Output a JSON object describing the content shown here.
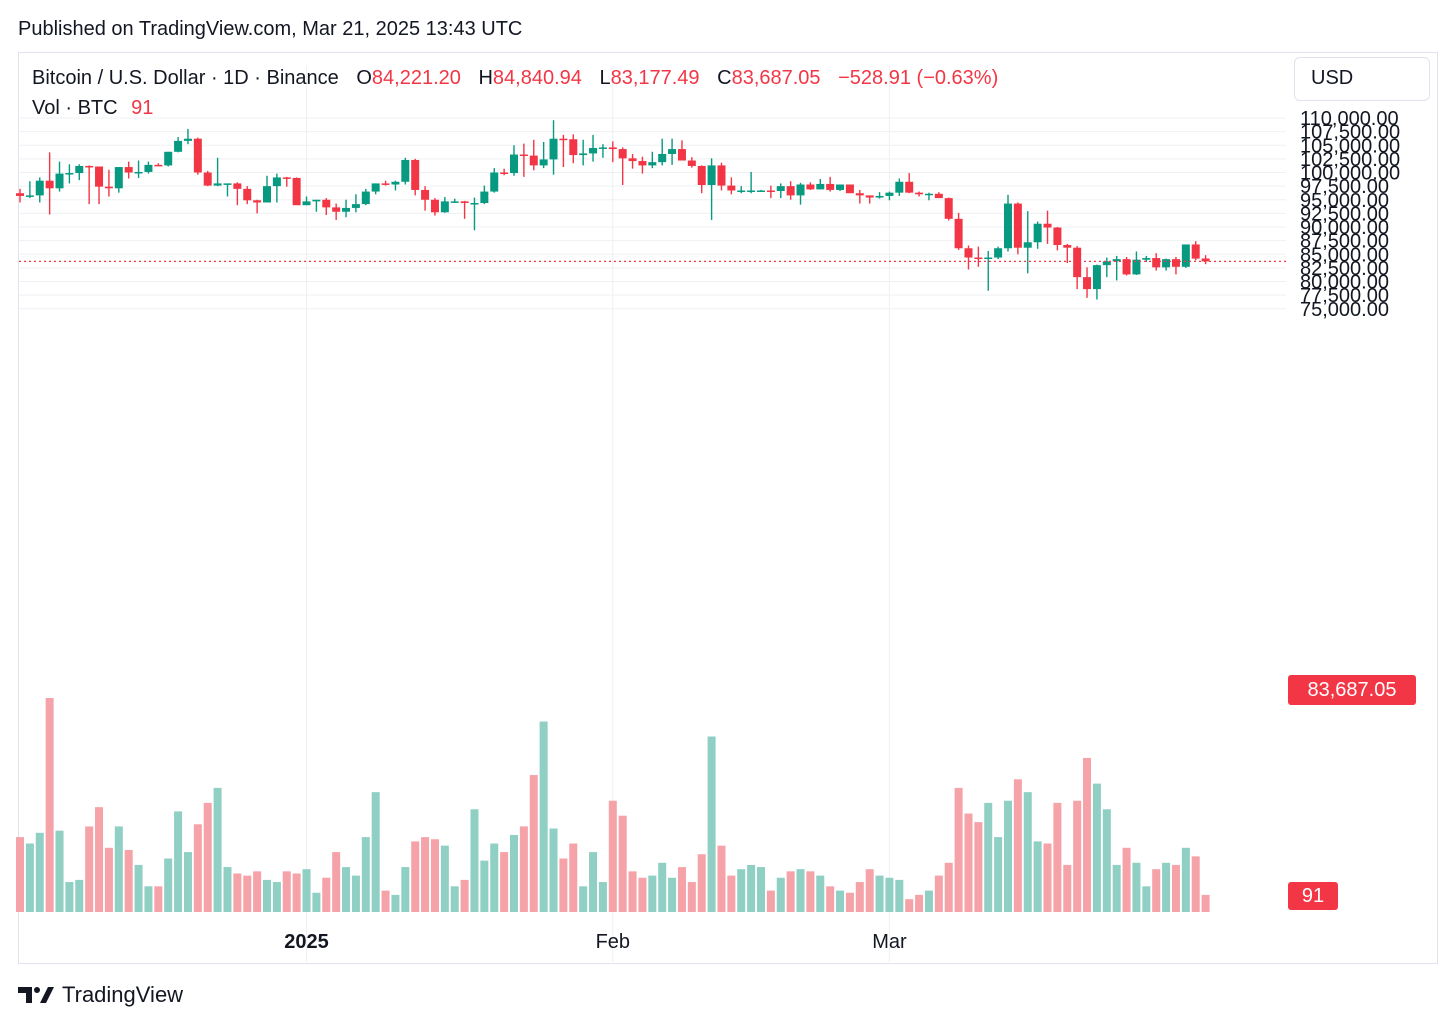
{
  "header": {
    "published": "Published on TradingView.com, Mar 21, 2025 13:43 UTC"
  },
  "legend": {
    "symbol": "Bitcoin / U.S. Dollar · 1D · Binance",
    "o_label": "O",
    "o_value": "84,221.20",
    "h_label": "H",
    "h_value": "84,840.94",
    "l_label": "L",
    "l_value": "83,177.49",
    "c_label": "C",
    "c_value": "83,687.05",
    "change": "−528.91 (−0.63%)",
    "vol_label": "Vol · BTC",
    "vol_value": "91"
  },
  "currency": "USD",
  "last_price_label": "83,687.05",
  "last_volume_label": "91",
  "footer": {
    "brand": "TradingView"
  },
  "colors": {
    "up": "#089981",
    "down": "#f23645",
    "up_volume": "#8fcfc4",
    "down_volume": "#f5a3a8",
    "grid": "#eef0f3",
    "last_line": "#f23645"
  },
  "chart_data": {
    "type": "candlestick",
    "ylim": [
      73000,
      111000
    ],
    "y_ticks": [
      {
        "value": 75000,
        "label": "75,000.00"
      },
      {
        "value": 77500,
        "label": "77,500.00"
      },
      {
        "value": 80000,
        "label": "80,000.00"
      },
      {
        "value": 82500,
        "label": "82,500.00"
      },
      {
        "value": 85000,
        "label": "85,000.00"
      },
      {
        "value": 87500,
        "label": "87,500.00"
      },
      {
        "value": 90000,
        "label": "90,000.00"
      },
      {
        "value": 92500,
        "label": "92,500.00"
      },
      {
        "value": 95000,
        "label": "95,000.00"
      },
      {
        "value": 97500,
        "label": "97,500.00"
      },
      {
        "value": 100000,
        "label": "100,000.00"
      },
      {
        "value": 102500,
        "label": "102,500.00"
      },
      {
        "value": 105000,
        "label": "105,000.00"
      },
      {
        "value": 107500,
        "label": "107,500.00"
      },
      {
        "value": 110000,
        "label": "110,000.00"
      }
    ],
    "x_ticks": [
      {
        "index": 29,
        "label": "2025",
        "bold": true
      },
      {
        "index": 60,
        "label": "Feb",
        "bold": false
      },
      {
        "index": 88,
        "label": "Mar",
        "bold": false
      }
    ],
    "last_price": 83687.05,
    "volume_max": 100,
    "candles": [
      {
        "o": 96200,
        "h": 97000,
        "l": 94500,
        "c": 95700,
        "v": 35
      },
      {
        "o": 95700,
        "h": 98400,
        "l": 95300,
        "c": 95800,
        "v": 32
      },
      {
        "o": 95800,
        "h": 99100,
        "l": 94500,
        "c": 98500,
        "v": 37
      },
      {
        "o": 98500,
        "h": 103700,
        "l": 92300,
        "c": 97100,
        "v": 100
      },
      {
        "o": 97100,
        "h": 102000,
        "l": 96500,
        "c": 99800,
        "v": 38
      },
      {
        "o": 99800,
        "h": 101500,
        "l": 98000,
        "c": 99900,
        "v": 14
      },
      {
        "o": 99900,
        "h": 101500,
        "l": 98600,
        "c": 101200,
        "v": 15
      },
      {
        "o": 101200,
        "h": 101300,
        "l": 94200,
        "c": 101100,
        "v": 40
      },
      {
        "o": 101100,
        "h": 101000,
        "l": 94200,
        "c": 97400,
        "v": 49
      },
      {
        "o": 97400,
        "h": 100500,
        "l": 95600,
        "c": 97100,
        "v": 30
      },
      {
        "o": 97100,
        "h": 101000,
        "l": 96300,
        "c": 101000,
        "v": 40
      },
      {
        "o": 101000,
        "h": 102000,
        "l": 98900,
        "c": 100000,
        "v": 29
      },
      {
        "o": 100000,
        "h": 102200,
        "l": 99000,
        "c": 100100,
        "v": 22
      },
      {
        "o": 100100,
        "h": 102000,
        "l": 99800,
        "c": 101400,
        "v": 12
      },
      {
        "o": 101400,
        "h": 101700,
        "l": 101300,
        "c": 101300,
        "v": 12
      },
      {
        "o": 101300,
        "h": 103800,
        "l": 101100,
        "c": 103800,
        "v": 25
      },
      {
        "o": 103800,
        "h": 106500,
        "l": 103700,
        "c": 105800,
        "v": 47
      },
      {
        "o": 105800,
        "h": 108000,
        "l": 105200,
        "c": 106200,
        "v": 28
      },
      {
        "o": 106200,
        "h": 106400,
        "l": 99600,
        "c": 100000,
        "v": 41
      },
      {
        "o": 100000,
        "h": 100300,
        "l": 97500,
        "c": 97600,
        "v": 51
      },
      {
        "o": 97600,
        "h": 102700,
        "l": 97500,
        "c": 98000,
        "v": 58
      },
      {
        "o": 98000,
        "h": 98000,
        "l": 95600,
        "c": 98000,
        "v": 21
      },
      {
        "o": 98000,
        "h": 98200,
        "l": 94000,
        "c": 97000,
        "v": 18
      },
      {
        "o": 97000,
        "h": 97500,
        "l": 94200,
        "c": 94900,
        "v": 17
      },
      {
        "o": 94900,
        "h": 95000,
        "l": 92500,
        "c": 94500,
        "v": 19
      },
      {
        "o": 94500,
        "h": 99400,
        "l": 94500,
        "c": 97500,
        "v": 15
      },
      {
        "o": 97500,
        "h": 99800,
        "l": 94500,
        "c": 99100,
        "v": 14
      },
      {
        "o": 99100,
        "h": 99200,
        "l": 97400,
        "c": 99000,
        "v": 19
      },
      {
        "o": 99000,
        "h": 99100,
        "l": 94100,
        "c": 94000,
        "v": 18
      },
      {
        "o": 94000,
        "h": 95600,
        "l": 94000,
        "c": 94700,
        "v": 20
      },
      {
        "o": 94700,
        "h": 95000,
        "l": 92800,
        "c": 95000,
        "v": 9
      },
      {
        "o": 95000,
        "h": 95300,
        "l": 92200,
        "c": 93600,
        "v": 16
      },
      {
        "o": 93600,
        "h": 94300,
        "l": 91300,
        "c": 92800,
        "v": 28
      },
      {
        "o": 92800,
        "h": 95000,
        "l": 91800,
        "c": 93500,
        "v": 21
      },
      {
        "o": 93500,
        "h": 96000,
        "l": 92700,
        "c": 94200,
        "v": 17
      },
      {
        "o": 94200,
        "h": 97000,
        "l": 94000,
        "c": 96500,
        "v": 35
      },
      {
        "o": 96500,
        "h": 98000,
        "l": 96000,
        "c": 98000,
        "v": 56
      },
      {
        "o": 98000,
        "h": 98500,
        "l": 97600,
        "c": 97800,
        "v": 10
      },
      {
        "o": 97800,
        "h": 98500,
        "l": 96700,
        "c": 98300,
        "v": 8
      },
      {
        "o": 98300,
        "h": 102700,
        "l": 97800,
        "c": 102300,
        "v": 21
      },
      {
        "o": 102300,
        "h": 102500,
        "l": 95800,
        "c": 96800,
        "v": 33
      },
      {
        "o": 96800,
        "h": 97500,
        "l": 93000,
        "c": 95000,
        "v": 35
      },
      {
        "o": 95000,
        "h": 95300,
        "l": 92100,
        "c": 92700,
        "v": 34
      },
      {
        "o": 92700,
        "h": 95500,
        "l": 92600,
        "c": 94700,
        "v": 31
      },
      {
        "o": 94700,
        "h": 95200,
        "l": 94400,
        "c": 94700,
        "v": 12
      },
      {
        "o": 94700,
        "h": 94800,
        "l": 91500,
        "c": 94400,
        "v": 15
      },
      {
        "o": 94400,
        "h": 95400,
        "l": 89400,
        "c": 94400,
        "v": 48
      },
      {
        "o": 94400,
        "h": 97600,
        "l": 94200,
        "c": 96500,
        "v": 24
      },
      {
        "o": 96500,
        "h": 100800,
        "l": 96300,
        "c": 100000,
        "v": 32
      },
      {
        "o": 100000,
        "h": 100700,
        "l": 99500,
        "c": 99900,
        "v": 28
      },
      {
        "o": 99900,
        "h": 105000,
        "l": 99400,
        "c": 103300,
        "v": 36
      },
      {
        "o": 103300,
        "h": 105300,
        "l": 99200,
        "c": 103100,
        "v": 40
      },
      {
        "o": 103100,
        "h": 106000,
        "l": 100400,
        "c": 101300,
        "v": 64
      },
      {
        "o": 101300,
        "h": 105600,
        "l": 100800,
        "c": 102400,
        "v": 89
      },
      {
        "o": 102400,
        "h": 109600,
        "l": 99600,
        "c": 106200,
        "v": 39
      },
      {
        "o": 106200,
        "h": 106900,
        "l": 101000,
        "c": 106100,
        "v": 25
      },
      {
        "o": 106100,
        "h": 107000,
        "l": 101700,
        "c": 103200,
        "v": 32
      },
      {
        "o": 103200,
        "h": 106000,
        "l": 101300,
        "c": 103500,
        "v": 12
      },
      {
        "o": 103500,
        "h": 106900,
        "l": 102000,
        "c": 104500,
        "v": 28
      },
      {
        "o": 104500,
        "h": 105200,
        "l": 102700,
        "c": 104600,
        "v": 14
      },
      {
        "o": 104600,
        "h": 105700,
        "l": 101900,
        "c": 104300,
        "v": 52
      },
      {
        "o": 104300,
        "h": 104600,
        "l": 97700,
        "c": 102600,
        "v": 45
      },
      {
        "o": 102600,
        "h": 103400,
        "l": 100700,
        "c": 102100,
        "v": 19
      },
      {
        "o": 102100,
        "h": 102900,
        "l": 99800,
        "c": 101300,
        "v": 16
      },
      {
        "o": 101300,
        "h": 103800,
        "l": 100800,
        "c": 101900,
        "v": 17
      },
      {
        "o": 101900,
        "h": 106200,
        "l": 101300,
        "c": 103400,
        "v": 23
      },
      {
        "o": 103400,
        "h": 106200,
        "l": 101400,
        "c": 104300,
        "v": 16
      },
      {
        "o": 104300,
        "h": 105900,
        "l": 102200,
        "c": 102200,
        "v": 21
      },
      {
        "o": 102200,
        "h": 102800,
        "l": 100900,
        "c": 101200,
        "v": 14
      },
      {
        "o": 101200,
        "h": 101300,
        "l": 96200,
        "c": 97700,
        "v": 27
      },
      {
        "o": 97700,
        "h": 102600,
        "l": 91300,
        "c": 101300,
        "v": 82
      },
      {
        "o": 101300,
        "h": 101800,
        "l": 96700,
        "c": 97600,
        "v": 31
      },
      {
        "o": 97600,
        "h": 99100,
        "l": 96000,
        "c": 96700,
        "v": 17
      },
      {
        "o": 96700,
        "h": 97500,
        "l": 96200,
        "c": 96700,
        "v": 20
      },
      {
        "o": 96700,
        "h": 100100,
        "l": 96200,
        "c": 96700,
        "v": 22
      },
      {
        "o": 96700,
        "h": 96800,
        "l": 96500,
        "c": 96700,
        "v": 21
      },
      {
        "o": 96700,
        "h": 97600,
        "l": 95300,
        "c": 96600,
        "v": 10
      },
      {
        "o": 96600,
        "h": 98000,
        "l": 95300,
        "c": 97500,
        "v": 16
      },
      {
        "o": 97500,
        "h": 98400,
        "l": 95000,
        "c": 95800,
        "v": 19
      },
      {
        "o": 95800,
        "h": 98100,
        "l": 94100,
        "c": 97800,
        "v": 20
      },
      {
        "o": 97800,
        "h": 98200,
        "l": 96800,
        "c": 96900,
        "v": 19
      },
      {
        "o": 96900,
        "h": 98800,
        "l": 96900,
        "c": 97900,
        "v": 17
      },
      {
        "o": 97900,
        "h": 99200,
        "l": 96500,
        "c": 96800,
        "v": 12
      },
      {
        "o": 96800,
        "h": 97500,
        "l": 96600,
        "c": 97800,
        "v": 10
      },
      {
        "o": 97800,
        "h": 97800,
        "l": 96200,
        "c": 96200,
        "v": 9
      },
      {
        "o": 96200,
        "h": 96800,
        "l": 94300,
        "c": 95800,
        "v": 14
      },
      {
        "o": 95800,
        "h": 95600,
        "l": 94300,
        "c": 95400,
        "v": 20
      },
      {
        "o": 95400,
        "h": 96400,
        "l": 95200,
        "c": 95700,
        "v": 17
      },
      {
        "o": 95700,
        "h": 96500,
        "l": 94900,
        "c": 96300,
        "v": 16
      },
      {
        "o": 96300,
        "h": 98900,
        "l": 95700,
        "c": 98300,
        "v": 15
      },
      {
        "o": 98300,
        "h": 99900,
        "l": 96200,
        "c": 96300,
        "v": 6
      },
      {
        "o": 96300,
        "h": 96500,
        "l": 95600,
        "c": 96000,
        "v": 8
      },
      {
        "o": 96000,
        "h": 96300,
        "l": 94900,
        "c": 96100,
        "v": 10
      },
      {
        "o": 96100,
        "h": 96400,
        "l": 95600,
        "c": 95300,
        "v": 17
      },
      {
        "o": 95300,
        "h": 95400,
        "l": 91200,
        "c": 91500,
        "v": 23
      },
      {
        "o": 91500,
        "h": 92600,
        "l": 85800,
        "c": 86100,
        "v": 58
      },
      {
        "o": 86100,
        "h": 86600,
        "l": 82200,
        "c": 84400,
        "v": 46
      },
      {
        "o": 84400,
        "h": 86400,
        "l": 82700,
        "c": 84300,
        "v": 42
      },
      {
        "o": 84300,
        "h": 85600,
        "l": 78300,
        "c": 84400,
        "v": 51
      },
      {
        "o": 84400,
        "h": 86400,
        "l": 84100,
        "c": 86100,
        "v": 35
      },
      {
        "o": 86100,
        "h": 95900,
        "l": 85500,
        "c": 94300,
        "v": 52
      },
      {
        "o": 94300,
        "h": 94500,
        "l": 85000,
        "c": 86200,
        "v": 62
      },
      {
        "o": 86200,
        "h": 92900,
        "l": 81500,
        "c": 87200,
        "v": 56
      },
      {
        "o": 87200,
        "h": 91000,
        "l": 86000,
        "c": 90600,
        "v": 33
      },
      {
        "o": 90600,
        "h": 93000,
        "l": 86900,
        "c": 89900,
        "v": 32
      },
      {
        "o": 89900,
        "h": 90000,
        "l": 85700,
        "c": 86700,
        "v": 51
      },
      {
        "o": 86700,
        "h": 86900,
        "l": 83400,
        "c": 86200,
        "v": 22
      },
      {
        "o": 86200,
        "h": 86500,
        "l": 78600,
        "c": 80800,
        "v": 52
      },
      {
        "o": 80800,
        "h": 82600,
        "l": 77000,
        "c": 78600,
        "v": 72
      },
      {
        "o": 78600,
        "h": 83100,
        "l": 76700,
        "c": 83000,
        "v": 60
      },
      {
        "o": 83000,
        "h": 84400,
        "l": 80800,
        "c": 83700,
        "v": 48
      },
      {
        "o": 83700,
        "h": 84700,
        "l": 80200,
        "c": 84100,
        "v": 22
      },
      {
        "o": 84100,
        "h": 84500,
        "l": 81100,
        "c": 81300,
        "v": 30
      },
      {
        "o": 81300,
        "h": 85500,
        "l": 81200,
        "c": 84000,
        "v": 23
      },
      {
        "o": 84000,
        "h": 84700,
        "l": 83600,
        "c": 84300,
        "v": 12
      },
      {
        "o": 84300,
        "h": 85200,
        "l": 82000,
        "c": 82600,
        "v": 20
      },
      {
        "o": 82600,
        "h": 84200,
        "l": 82000,
        "c": 84100,
        "v": 23
      },
      {
        "o": 84100,
        "h": 84500,
        "l": 81300,
        "c": 82700,
        "v": 22
      },
      {
        "o": 82700,
        "h": 86600,
        "l": 82500,
        "c": 86800,
        "v": 30
      },
      {
        "o": 86800,
        "h": 87400,
        "l": 83900,
        "c": 84200,
        "v": 26
      },
      {
        "o": 84221.2,
        "h": 84840.94,
        "l": 83177.49,
        "c": 83687.05,
        "v": 8
      }
    ]
  }
}
